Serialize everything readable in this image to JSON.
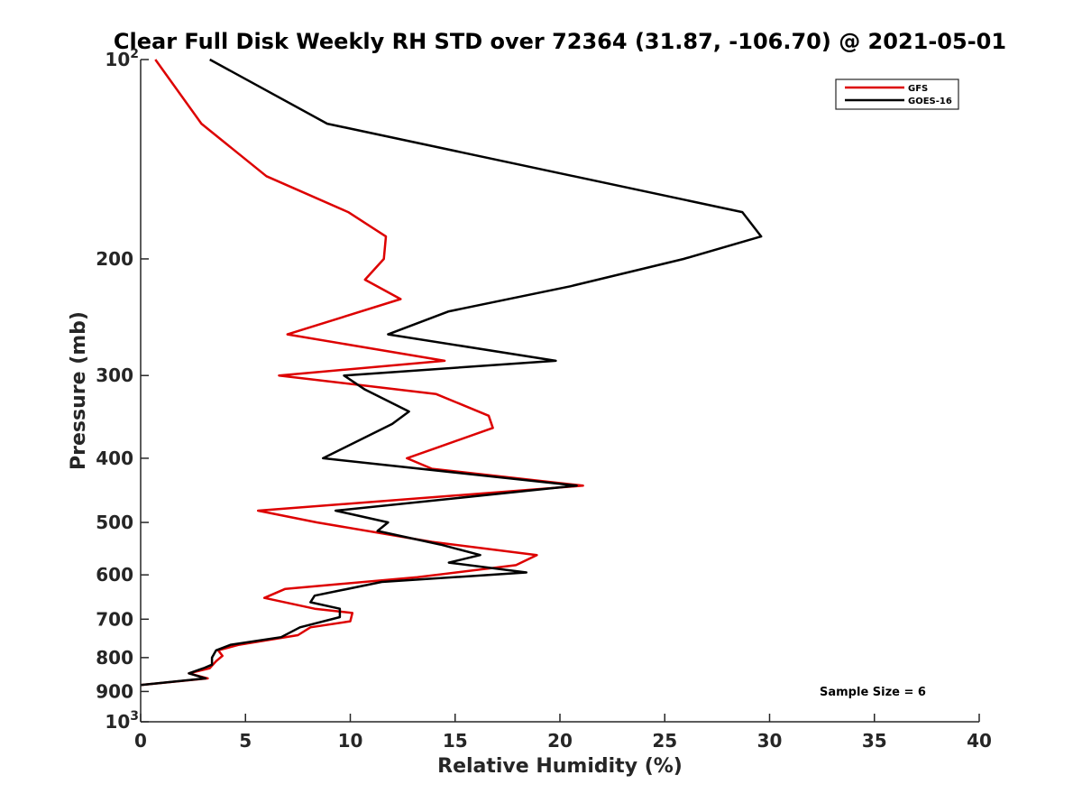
{
  "chart_data": {
    "type": "line",
    "title": "Clear Full Disk Weekly RH STD over 72364 (31.87, -106.70) @ 2021-05-01",
    "xlabel": "Relative Humidity (%)",
    "ylabel": "Pressure (mb)",
    "xlim": [
      0,
      40
    ],
    "ylim": [
      100,
      1000
    ],
    "yscale": "log",
    "y_reversed": true,
    "x_ticks": [
      "0",
      "5",
      "10",
      "15",
      "20",
      "25",
      "30",
      "35",
      "40"
    ],
    "y_ticks": [
      {
        "value": 100,
        "base": "10",
        "exp": "2"
      },
      {
        "value": 200,
        "base": "200",
        "exp": ""
      },
      {
        "value": 300,
        "base": "300",
        "exp": ""
      },
      {
        "value": 400,
        "base": "400",
        "exp": ""
      },
      {
        "value": 500,
        "base": "500",
        "exp": ""
      },
      {
        "value": 600,
        "base": "600",
        "exp": ""
      },
      {
        "value": 700,
        "base": "700",
        "exp": ""
      },
      {
        "value": 800,
        "base": "800",
        "exp": ""
      },
      {
        "value": 900,
        "base": "900",
        "exp": ""
      },
      {
        "value": 1000,
        "base": "10",
        "exp": "3"
      }
    ],
    "legend_position": "top-right",
    "annotation": "Sample Size = 6",
    "series": [
      {
        "name": "GFS",
        "color": "#dd0000",
        "points": [
          [
            0.7,
            100
          ],
          [
            2.9,
            125
          ],
          [
            6.0,
            150
          ],
          [
            9.9,
            170
          ],
          [
            11.7,
            185
          ],
          [
            11.6,
            200
          ],
          [
            10.7,
            215
          ],
          [
            12.4,
            230
          ],
          [
            7.0,
            260
          ],
          [
            14.5,
            285
          ],
          [
            6.6,
            300
          ],
          [
            14.1,
            320
          ],
          [
            16.6,
            345
          ],
          [
            16.8,
            360
          ],
          [
            14.2,
            385
          ],
          [
            12.7,
            400
          ],
          [
            13.9,
            415
          ],
          [
            21.1,
            440
          ],
          [
            5.6,
            480
          ],
          [
            8.4,
            500
          ],
          [
            13.9,
            535
          ],
          [
            18.9,
            560
          ],
          [
            17.9,
            580
          ],
          [
            13.2,
            605
          ],
          [
            6.9,
            630
          ],
          [
            5.9,
            650
          ],
          [
            8.3,
            675
          ],
          [
            10.1,
            685
          ],
          [
            10.0,
            705
          ],
          [
            8.1,
            720
          ],
          [
            7.5,
            740
          ],
          [
            4.7,
            765
          ],
          [
            3.7,
            780
          ],
          [
            3.9,
            795
          ],
          [
            3.6,
            810
          ],
          [
            3.3,
            830
          ],
          [
            2.3,
            845
          ],
          [
            3.2,
            860
          ],
          [
            0.0,
            880
          ]
        ]
      },
      {
        "name": "GOES-16",
        "color": "#000000",
        "points": [
          [
            3.3,
            100
          ],
          [
            8.9,
            125
          ],
          [
            28.7,
            170
          ],
          [
            29.6,
            185
          ],
          [
            25.9,
            200
          ],
          [
            20.5,
            220
          ],
          [
            14.7,
            240
          ],
          [
            11.8,
            260
          ],
          [
            19.8,
            285
          ],
          [
            9.7,
            300
          ],
          [
            10.7,
            315
          ],
          [
            12.8,
            340
          ],
          [
            12.0,
            355
          ],
          [
            8.7,
            400
          ],
          [
            20.8,
            440
          ],
          [
            9.3,
            480
          ],
          [
            11.8,
            500
          ],
          [
            11.3,
            515
          ],
          [
            14.3,
            540
          ],
          [
            16.2,
            560
          ],
          [
            14.7,
            575
          ],
          [
            18.4,
            595
          ],
          [
            11.5,
            615
          ],
          [
            8.3,
            645
          ],
          [
            8.1,
            660
          ],
          [
            9.5,
            675
          ],
          [
            9.5,
            695
          ],
          [
            7.6,
            720
          ],
          [
            6.7,
            745
          ],
          [
            4.3,
            765
          ],
          [
            3.6,
            780
          ],
          [
            3.4,
            800
          ],
          [
            3.4,
            820
          ],
          [
            3.0,
            830
          ],
          [
            2.3,
            845
          ],
          [
            3.1,
            860
          ],
          [
            0.0,
            880
          ]
        ]
      }
    ]
  }
}
